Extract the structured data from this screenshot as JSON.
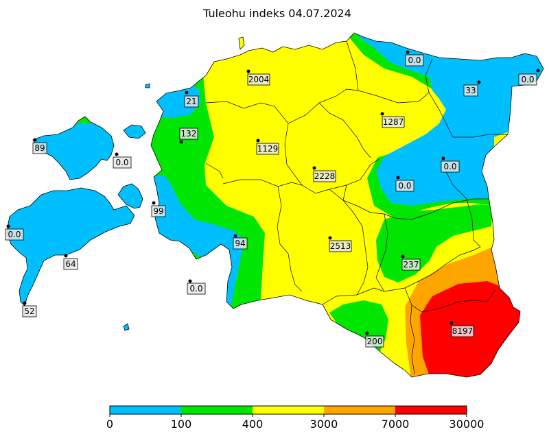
{
  "title": "Tuleohu indeks 04.07.2024",
  "colors": {
    "band_0_100": "#00bfff",
    "band_100_400": "#00e600",
    "band_400_3000": "#ffff00",
    "band_3000_7000": "#ffa500",
    "band_7000_30000": "#ff0000",
    "outline": "#000000",
    "label_box": "#e6e6e6"
  },
  "colorbar": {
    "ticks": [
      "0",
      "100",
      "400",
      "3000",
      "7000",
      "30000"
    ]
  },
  "stations": [
    {
      "id": "narva-joesuu",
      "value": "0.0"
    },
    {
      "id": "kunda",
      "value": "0.0"
    },
    {
      "id": "johvi",
      "value": "33"
    },
    {
      "id": "tallinn",
      "value": "2004"
    },
    {
      "id": "pakri",
      "value": "21"
    },
    {
      "id": "vaike-maarja",
      "value": "1287"
    },
    {
      "id": "lihula",
      "value": "132"
    },
    {
      "id": "turi",
      "value": "1129"
    },
    {
      "id": "ristna",
      "value": "89"
    },
    {
      "id": "heltermaa",
      "value": "0.0"
    },
    {
      "id": "tiirikoja",
      "value": "0.0"
    },
    {
      "id": "jogeva",
      "value": "2228"
    },
    {
      "id": "toravere-n",
      "value": "0.0"
    },
    {
      "id": "virtsu",
      "value": "99"
    },
    {
      "id": "vilsandi",
      "value": "0.0"
    },
    {
      "id": "parnu",
      "value": "94"
    },
    {
      "id": "viljandi",
      "value": "2513"
    },
    {
      "id": "kuressaare",
      "value": "64"
    },
    {
      "id": "toravere",
      "value": "237"
    },
    {
      "id": "kihnu",
      "value": "0.0"
    },
    {
      "id": "sorve",
      "value": "52"
    },
    {
      "id": "valga",
      "value": "200"
    },
    {
      "id": "voru",
      "value": "8197"
    }
  ]
}
